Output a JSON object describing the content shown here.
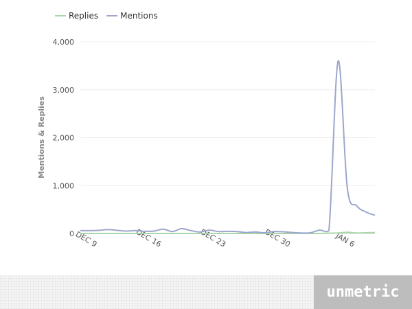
{
  "chart_data": {
    "type": "line",
    "title": "",
    "ylabel": "Mentions & Replies",
    "xlabel": "",
    "ylim": [
      0,
      4000
    ],
    "yticks": [
      0,
      1000,
      2000,
      3000,
      4000
    ],
    "ytick_labels": [
      "0",
      "1,000",
      "2,000",
      "3,000",
      "4,000"
    ],
    "x_start": "2012-12-08",
    "x_end": "2013-01-09",
    "xticks": [
      {
        "date": "2012-12-09",
        "label": "DEC 9"
      },
      {
        "date": "2012-12-16",
        "label": "DEC 16"
      },
      {
        "date": "2012-12-23",
        "label": "DEC 23"
      },
      {
        "date": "2012-12-30",
        "label": "DEC 30"
      },
      {
        "date": "2013-01-06",
        "label": "JAN 6"
      }
    ],
    "legend_position": "top-left",
    "grid": true,
    "series": [
      {
        "name": "Replies",
        "color": "#a8d8a8",
        "points": [
          [
            "2012-12-08",
            0
          ],
          [
            "2012-12-10",
            0
          ],
          [
            "2012-12-12",
            0
          ],
          [
            "2012-12-14",
            0
          ],
          [
            "2012-12-16",
            0
          ],
          [
            "2012-12-18",
            0
          ],
          [
            "2012-12-20",
            0
          ],
          [
            "2012-12-22",
            0
          ],
          [
            "2012-12-24",
            0
          ],
          [
            "2012-12-26",
            0
          ],
          [
            "2012-12-28",
            0
          ],
          [
            "2012-12-30",
            0
          ],
          [
            "2013-01-01",
            0
          ],
          [
            "2013-01-03",
            0
          ],
          [
            "2013-01-04",
            5
          ],
          [
            "2013-01-05",
            10
          ],
          [
            "2013-01-06",
            25
          ],
          [
            "2013-01-07",
            10
          ],
          [
            "2013-01-08",
            15
          ],
          [
            "2013-01-09",
            20
          ]
        ]
      },
      {
        "name": "Mentions",
        "color": "#9ca6cc",
        "points": [
          [
            "2012-12-08",
            60
          ],
          [
            "2012-12-09",
            60
          ],
          [
            "2012-12-10",
            65
          ],
          [
            "2012-12-11",
            80
          ],
          [
            "2012-12-12",
            65
          ],
          [
            "2012-12-13",
            50
          ],
          [
            "2012-12-14",
            60
          ],
          [
            "2012-12-15",
            45
          ],
          [
            "2012-12-16",
            50
          ],
          [
            "2012-12-17",
            90
          ],
          [
            "2012-12-18",
            40
          ],
          [
            "2012-12-19",
            100
          ],
          [
            "2012-12-20",
            60
          ],
          [
            "2012-12-21",
            30
          ],
          [
            "2012-12-22",
            70
          ],
          [
            "2012-12-23",
            40
          ],
          [
            "2012-12-24",
            45
          ],
          [
            "2012-12-25",
            40
          ],
          [
            "2012-12-26",
            20
          ],
          [
            "2012-12-27",
            30
          ],
          [
            "2012-12-28",
            15
          ],
          [
            "2012-12-29",
            40
          ],
          [
            "2012-12-30",
            35
          ],
          [
            "2012-12-31",
            20
          ],
          [
            "2013-01-01",
            10
          ],
          [
            "2013-01-02",
            15
          ],
          [
            "2013-01-03",
            70
          ],
          [
            "2013-01-04",
            60
          ],
          [
            "2013-01-05",
            3600
          ],
          [
            "2013-01-06",
            950
          ],
          [
            "2013-01-07",
            580
          ],
          [
            "2013-01-08",
            450
          ],
          [
            "2013-01-09",
            380
          ]
        ]
      }
    ]
  },
  "brand": {
    "logo_text": "unmetric"
  }
}
